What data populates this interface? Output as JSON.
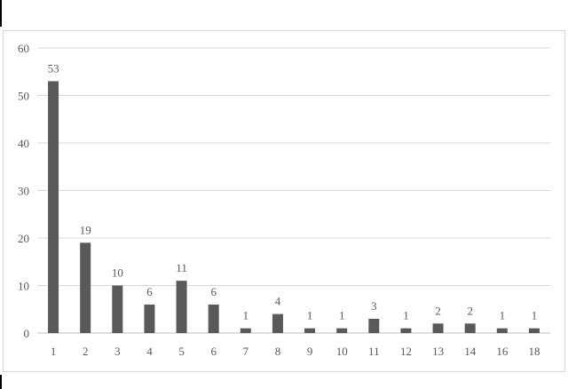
{
  "chart_data": {
    "type": "bar",
    "categories": [
      "1",
      "2",
      "3",
      "4",
      "5",
      "6",
      "7",
      "8",
      "9",
      "10",
      "11",
      "12",
      "13",
      "14",
      "16",
      "18"
    ],
    "values": [
      53,
      19,
      10,
      6,
      11,
      6,
      1,
      4,
      1,
      1,
      3,
      1,
      2,
      2,
      1,
      1
    ],
    "title": "",
    "xlabel": "",
    "ylabel": "",
    "ylim": [
      0,
      60
    ],
    "yticks": [
      0,
      10,
      20,
      30,
      40,
      50,
      60
    ],
    "grid": true,
    "data_labels": true,
    "bar_color": "#595959",
    "grid_color": "#d9d9d9"
  }
}
